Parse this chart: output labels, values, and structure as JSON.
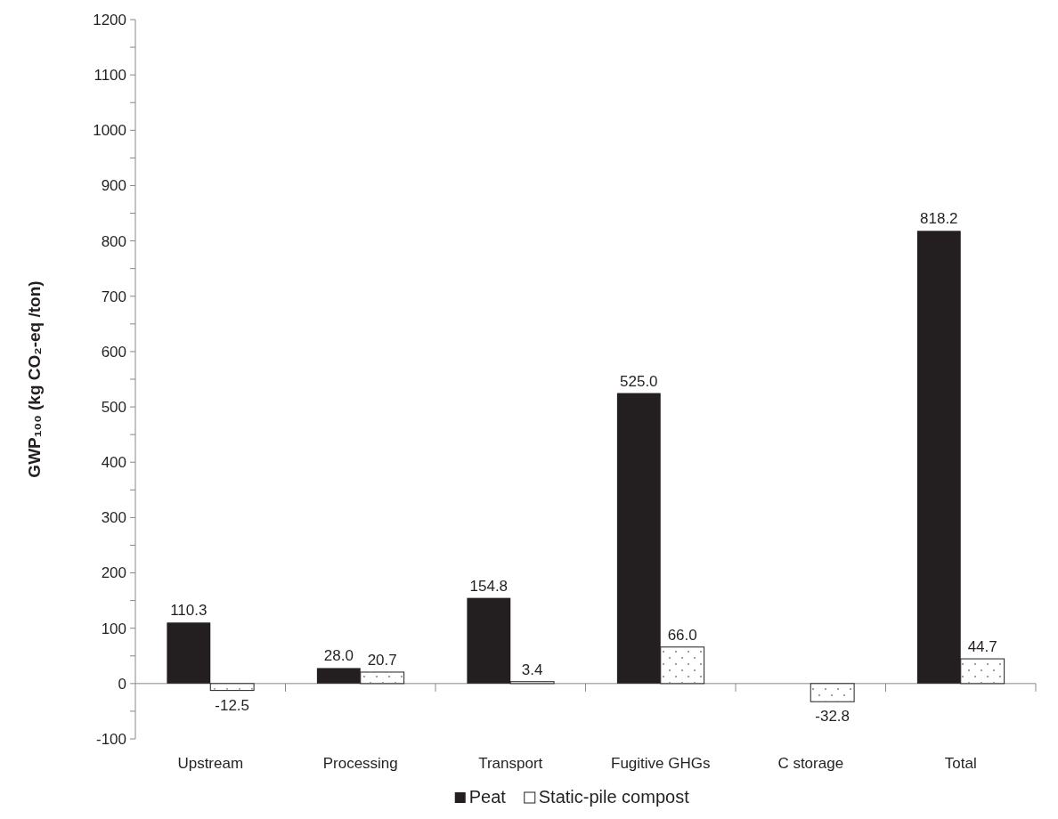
{
  "chart_data": {
    "type": "bar",
    "ylabel": "GWP₁₀₀ (kg CO₂-eq /ton)",
    "categories": [
      "Upstream",
      "Processing",
      "Transport",
      "Fugitive GHGs",
      "C storage",
      "Total"
    ],
    "series": [
      {
        "name": "Peat",
        "color": "#231f20",
        "values": [
          110.3,
          28.0,
          154.8,
          525.0,
          null,
          818.2
        ],
        "value_labels": [
          "110.3",
          "28.0",
          "154.8",
          "525.0",
          null,
          "818.2"
        ]
      },
      {
        "name": "Static-pile compost",
        "color": "#ffffff",
        "values": [
          -12.5,
          20.7,
          3.4,
          66.0,
          -32.8,
          44.7
        ],
        "value_labels": [
          "-12.5",
          "20.7",
          "3.4",
          "66.0",
          "-32.8",
          "44.7"
        ]
      }
    ],
    "ylim": [
      -100,
      1200
    ],
    "yticks": [
      -100,
      {
        "value": -50,
        "label": null
      },
      0,
      {
        "value": 50,
        "label": null
      },
      100,
      {
        "value": 150,
        "label": null
      },
      200,
      {
        "value": 250,
        "label": null
      },
      300,
      {
        "value": 350,
        "label": null
      },
      400,
      {
        "value": 450,
        "label": null
      },
      500,
      {
        "value": 550,
        "label": null
      },
      600,
      {
        "value": 650,
        "label": null
      },
      700,
      {
        "value": 750,
        "label": null
      },
      800,
      {
        "value": 850,
        "label": null
      },
      900,
      {
        "value": 950,
        "label": null
      },
      1000,
      {
        "value": 1050,
        "label": null
      },
      1100,
      {
        "value": 1150,
        "label": null
      },
      1200
    ],
    "legend": "bottom"
  }
}
